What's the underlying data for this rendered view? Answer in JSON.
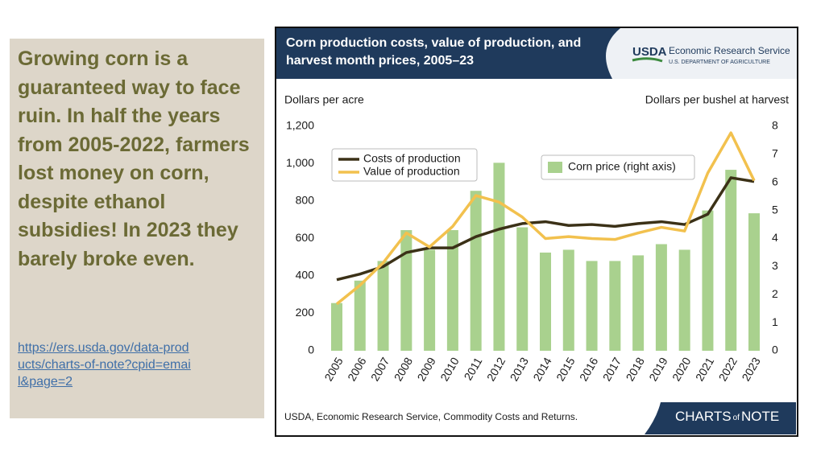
{
  "slide": {
    "text": "Growing corn is a guaranteed way to face ruin. In half the years from 2005-2022, farmers lost money on corn, despite ethanol subsidies! In 2023 they barely broke even.",
    "link": "https://ers.usda.gov/data-products/charts-of-note?cpid=email&page=2"
  },
  "header": {
    "logo": "USDA",
    "agency": "Economic Research Service",
    "department": "U.S. DEPARTMENT OF AGRICULTURE"
  },
  "brand": {
    "main": "CHARTS",
    "small": "of",
    "end": "NOTE"
  },
  "chart_data": {
    "type": "combo",
    "title": "Corn production costs, value of production, and harvest month prices, 2005–23",
    "y_label": "Dollars per acre",
    "y2_label": "Dollars per bushel at harvest",
    "source": "USDA, Economic Research Service, Commodity Costs and Returns.",
    "categories": [
      "2005",
      "2006",
      "2007",
      "2008",
      "2009",
      "2010",
      "2011",
      "2012",
      "2013",
      "2014",
      "2015",
      "2016",
      "2017",
      "2018",
      "2019",
      "2020",
      "2021",
      "2022",
      "2023"
    ],
    "ylim": [
      0,
      1200
    ],
    "yticks": [
      0,
      200,
      400,
      600,
      800,
      {
        "value": 1000,
        "label": "1,000"
      },
      {
        "value": 1200,
        "label": "1,200"
      }
    ],
    "y2lim": [
      0,
      8
    ],
    "y2ticks": [
      0,
      1,
      2,
      3,
      4,
      5,
      6,
      7,
      8
    ],
    "series": [
      {
        "name": "Corn price (right axis)",
        "type": "bar",
        "axis": "y2",
        "color": "#a9d18e",
        "values": [
          1.7,
          2.5,
          3.2,
          4.3,
          3.6,
          4.3,
          5.7,
          6.7,
          4.4,
          3.5,
          3.6,
          3.2,
          3.2,
          3.4,
          3.8,
          3.6,
          5.0,
          6.45,
          4.9
        ]
      },
      {
        "name": "Costs of production",
        "type": "line",
        "color": "#3b3117",
        "values": [
          380,
          410,
          450,
          525,
          550,
          550,
          610,
          650,
          680,
          690,
          670,
          675,
          665,
          680,
          690,
          675,
          730,
          925,
          905
        ]
      },
      {
        "name": "Value of production",
        "type": "line",
        "color": "#f2c14e",
        "values": [
          250,
          350,
          470,
          630,
          555,
          665,
          830,
          795,
          715,
          600,
          610,
          600,
          595,
          630,
          660,
          640,
          950,
          1165,
          910
        ]
      }
    ]
  }
}
